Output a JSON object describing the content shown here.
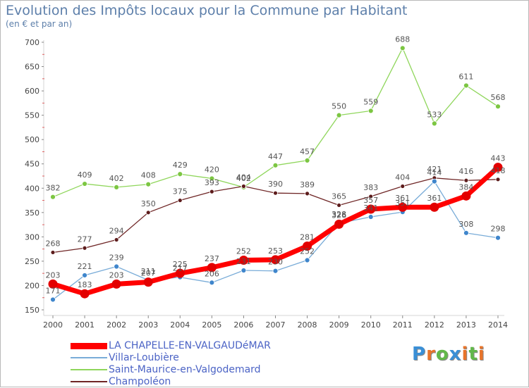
{
  "header": {
    "title": "Evolution des Impôts locaux pour la Commune par Habitant",
    "subtitle": "(en € et par an)"
  },
  "logo": {
    "letters": [
      "P",
      "r",
      "o",
      "x",
      "i",
      "t",
      "i"
    ],
    "colors": [
      "#3a8fd6",
      "#e8742a",
      "#62b84a",
      "#3a8fd6",
      "#e8742a",
      "#62b84a",
      "#e8742a"
    ]
  },
  "chart_data": {
    "type": "line",
    "title": "Evolution des Impôts locaux pour la Commune par Habitant",
    "subtitle": "(en € et par an)",
    "x": [
      "2000",
      "2001",
      "2002",
      "2003",
      "2004",
      "2005",
      "2006",
      "2007",
      "2008",
      "2009",
      "2010",
      "2011",
      "2012",
      "2013",
      "2014"
    ],
    "ylim": [
      150,
      700
    ],
    "yticks": [
      150,
      200,
      250,
      300,
      350,
      400,
      450,
      500,
      550,
      600,
      650,
      700
    ],
    "grid": false,
    "legend": "bottom-left",
    "series": [
      {
        "name": "Saint-Maurice-en-Valgodemard",
        "color": "#8fd65b",
        "marker": "#7cc642",
        "width": 1.3,
        "radius": 3.5,
        "labelColor": "#555555",
        "values": [
          382,
          409,
          402,
          408,
          429,
          420,
          402,
          447,
          457,
          550,
          559,
          688,
          533,
          611,
          568
        ]
      },
      {
        "name": "Champoléon",
        "color": "#6f2626",
        "marker": "#5d1c1c",
        "width": 1.3,
        "radius": 3,
        "labelColor": "#555555",
        "values": [
          268,
          277,
          294,
          350,
          375,
          393,
          404,
          390,
          389,
          365,
          383,
          404,
          421,
          416,
          418
        ]
      },
      {
        "name": "Villar-Loubière",
        "color": "#79acd8",
        "marker": "#3f86cc",
        "width": 1.3,
        "radius": 3.5,
        "labelColor": "#555555",
        "values": [
          171,
          221,
          239,
          211,
          217,
          206,
          231,
          230,
          252,
          328,
          341,
          351,
          414,
          308,
          298
        ]
      },
      {
        "name": "LA CHAPELLE-EN-VALGAUDéMAR",
        "color": "#ff0000",
        "marker": "#e30000",
        "width": 7,
        "radius": 6.5,
        "labelColor": "#555555",
        "values": [
          203,
          183,
          203,
          207,
          225,
          237,
          252,
          253,
          281,
          326,
          357,
          361,
          361,
          384,
          443
        ]
      }
    ],
    "legend_order": [
      3,
      2,
      0,
      1
    ]
  }
}
